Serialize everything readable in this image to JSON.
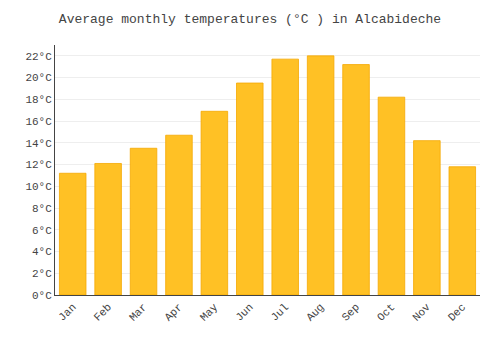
{
  "chart_data": {
    "type": "bar",
    "title": "Average monthly temperatures (°C ) in Alcabideche",
    "categories": [
      "Jan",
      "Feb",
      "Mar",
      "Apr",
      "May",
      "Jun",
      "Jul",
      "Aug",
      "Sep",
      "Oct",
      "Nov",
      "Dec"
    ],
    "values": [
      11.2,
      12.1,
      13.5,
      14.7,
      16.9,
      19.5,
      21.7,
      22.0,
      21.2,
      18.2,
      14.2,
      11.8
    ],
    "color": "#FFC125",
    "ylim": [
      0,
      23
    ],
    "yticks": [
      {
        "value": 0,
        "label": "0°C"
      },
      {
        "value": 2,
        "label": "2°C"
      },
      {
        "value": 4,
        "label": "4°C"
      },
      {
        "value": 6,
        "label": "6°C"
      },
      {
        "value": 8,
        "label": "8°C"
      },
      {
        "value": 10,
        "label": "10°C"
      },
      {
        "value": 12,
        "label": "12°C"
      },
      {
        "value": 14,
        "label": "14°C"
      },
      {
        "value": 16,
        "label": "16°C"
      },
      {
        "value": 18,
        "label": "18°C"
      },
      {
        "value": 20,
        "label": "20°C"
      },
      {
        "value": 22,
        "label": "22°C"
      }
    ],
    "grid": true
  }
}
